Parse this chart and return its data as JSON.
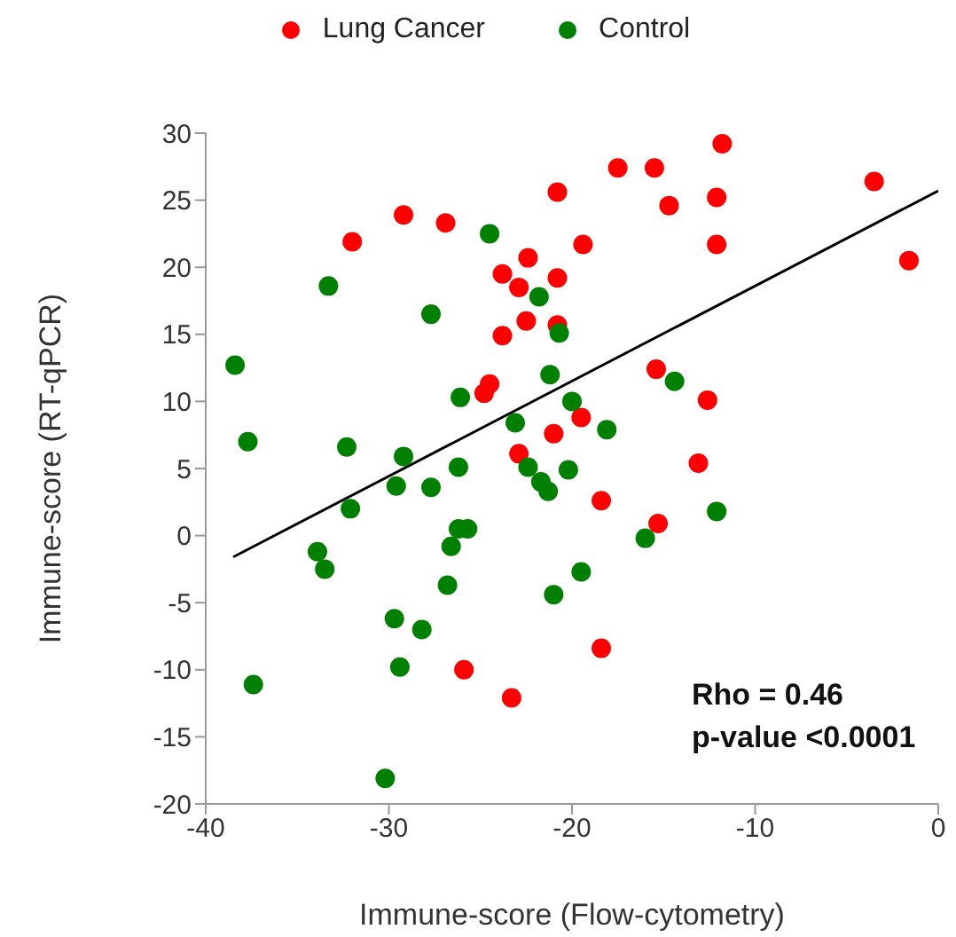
{
  "chart_data": {
    "type": "scatter",
    "xlabel": "Immune-score  (Flow-cytometry)",
    "ylabel": "Immune-score   (RT-qPCR)",
    "xlim": [
      -40,
      0
    ],
    "xticks": [
      -40,
      -30,
      -20,
      -10,
      0
    ],
    "ylim": [
      -20,
      30
    ],
    "yticks": [
      -20,
      -15,
      -10,
      -5,
      0,
      5,
      10,
      15,
      20,
      25,
      30
    ],
    "grid": false,
    "legend": "top",
    "marker": "circle",
    "annotations": [
      "Rho = 0.46",
      "p-value <0.0001"
    ],
    "series": [
      {
        "name": "Lung Cancer",
        "color": "#ff0000",
        "x": [
          -32.0,
          -29.2,
          -26.9,
          -20.8,
          -23.8,
          -22.4,
          -22.9,
          -20.8,
          -22.5,
          -20.8,
          -23.8,
          -24.5,
          -24.8,
          -21.0,
          -11.8,
          -17.5,
          -15.5,
          -12.1,
          -3.5,
          -14.7,
          -19.4,
          -12.1,
          -1.6,
          -15.4,
          -12.6,
          -19.5,
          -13.1,
          -18.4,
          -15.3,
          -18.4,
          -22.9,
          -25.9,
          -23.3
        ],
        "values": [
          21.9,
          23.9,
          23.3,
          25.6,
          19.5,
          20.7,
          18.5,
          19.2,
          16.0,
          15.7,
          14.9,
          11.3,
          10.6,
          7.6,
          29.2,
          27.4,
          27.4,
          25.2,
          26.4,
          24.6,
          21.7,
          21.7,
          20.5,
          12.4,
          10.1,
          8.8,
          5.4,
          2.6,
          0.9,
          -8.4,
          6.1,
          -10.0,
          -12.1
        ]
      },
      {
        "name": "Control",
        "color": "#008000",
        "x": [
          -24.5,
          -33.3,
          -21.8,
          -27.7,
          -20.7,
          -38.4,
          -21.2,
          -26.1,
          -23.1,
          -37.7,
          -32.3,
          -29.2,
          -14.4,
          -20.0,
          -18.1,
          -20.2,
          -21.7,
          -21.3,
          -12.1,
          -16.0,
          -19.5,
          -21.0,
          -26.2,
          -22.4,
          -29.6,
          -27.7,
          -32.1,
          -26.2,
          -25.7,
          -33.9,
          -26.6,
          -33.5,
          -26.8,
          -29.7,
          -28.2,
          -29.4,
          -37.4,
          -30.2
        ],
        "values": [
          22.5,
          18.6,
          17.8,
          16.5,
          15.1,
          12.7,
          12.0,
          10.3,
          8.4,
          7.0,
          6.6,
          5.9,
          11.5,
          10.0,
          7.9,
          4.9,
          4.0,
          3.3,
          1.8,
          -0.2,
          -2.7,
          -4.4,
          5.1,
          5.1,
          3.7,
          3.6,
          2.0,
          0.5,
          0.5,
          -1.2,
          -0.8,
          -2.5,
          -3.7,
          -6.2,
          -7.0,
          -9.8,
          -11.1,
          -18.1
        ]
      },
      {
        "type": "line",
        "marker": "none",
        "color": "#000000",
        "x": [
          -38.5,
          0
        ],
        "values": [
          -1.6,
          25.7
        ]
      }
    ]
  }
}
